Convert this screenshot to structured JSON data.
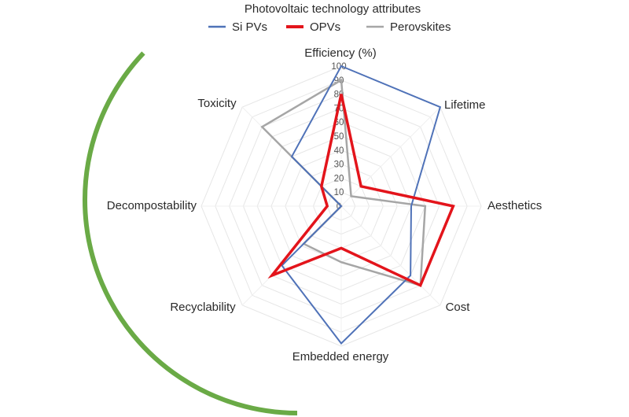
{
  "chart_data": {
    "type": "radar",
    "title": "Photovoltaic technology attributes",
    "axes": [
      "Efficiency (%)",
      "Lifetime",
      "Aesthetics",
      "Cost",
      "Embedded energy",
      "Recyclability",
      "Decompostability",
      "Toxicity"
    ],
    "radial_ticks": [
      "0",
      "10",
      "20",
      "30",
      "40",
      "50",
      "60",
      "70",
      "80",
      "90",
      "100"
    ],
    "rlim": [
      0,
      100
    ],
    "grid": true,
    "legend_position": "top-center",
    "series": [
      {
        "name": "Si PVs",
        "color": "#4f72b8",
        "values": [
          100,
          100,
          50,
          70,
          98,
          60,
          0,
          50
        ]
      },
      {
        "name": "OPVs",
        "color": "#e3141b",
        "values": [
          80,
          20,
          80,
          80,
          30,
          70,
          10,
          20
        ]
      },
      {
        "name": "Perovskites",
        "color": "#a6a6a6",
        "values": [
          90,
          10,
          60,
          80,
          40,
          38,
          0,
          80
        ]
      }
    ],
    "annotation": {
      "type": "arc",
      "color": "#6aaa46",
      "side": "left"
    }
  }
}
